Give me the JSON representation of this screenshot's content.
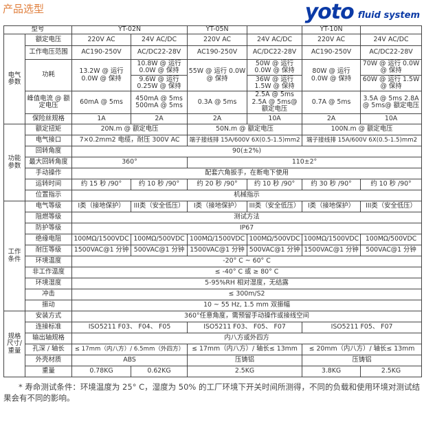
{
  "title": "产品选型",
  "header": {
    "label": "型号",
    "models": [
      "YT-02N",
      "YT-05N",
      "",
      "YT-10N",
      ""
    ]
  },
  "electrical": {
    "group": "电气参数",
    "rated_voltage": {
      "label": "额定电压",
      "values": [
        "220V AC",
        "24V AC/DC",
        "220V AC",
        "24V AC/DC",
        "220V AC",
        "24V AC/DC"
      ]
    },
    "voltage_range": {
      "label": "工作电压范围",
      "values": [
        "AC190-250V",
        "AC/DC22-28V",
        "AC190-250V",
        "AC/DC22-28V",
        "AC190-250V",
        "AC/DC22-28V"
      ]
    },
    "power": {
      "label": "功耗",
      "c1": "13.2W @ 运行 0.0W @ 保持",
      "c2a": "10.8W @ 运行 0.0W @ 保持",
      "c2b": "9.6W @ 运行 0.25W @ 保持",
      "c3": "55W @ 运行 0.0W @ 保持",
      "c4a": "50W @ 运行 0.0W @ 保持",
      "c4b": "36W @ 运行 1.5W @ 保持",
      "c5": "80W @ 运行 0.0W @ 保持",
      "c6a": "70W @ 运行 0.0W @ 保持",
      "c6b": "60W @ 运行 1.5W @ 保持"
    },
    "peak": {
      "label": "峰值电流 @ 额定电压",
      "values": [
        "60mA @ 5ms",
        "450mA @ 5ms 500mA @ 5ms",
        "0.3A @ 5ms",
        "2.5A @ 5ms 2.5A @ 5ms@ 额定电压",
        "0.7A @ 5ms",
        "3.5A @ 5ms 2.8A @ 5ms@ 额定电压"
      ]
    },
    "fuse": {
      "label": "保险丝规格",
      "values": [
        "1A",
        "2A",
        "2A",
        "10A",
        "2A",
        "10A"
      ]
    }
  },
  "function": {
    "group": "功能参数",
    "torque": {
      "label": "额定扭矩",
      "values": [
        "20N.m @ 额定电压",
        "50N.m @ 额定电压",
        "100N.m @ 额定电压"
      ]
    },
    "connector": {
      "label": "电气接口",
      "values": [
        "7×0.2mm2 电缆，耐压 300V AC",
        "端子接线排 15A/600V 6X(0.5-1.5)mm2",
        "端子接线排 15A/600V 6X(0.5-1.5)mm2"
      ]
    },
    "angle": {
      "label": "回转角度",
      "value": "90(±2%)"
    },
    "max_angle": {
      "label": "最大回转角度",
      "values": [
        "360°",
        "110±2°"
      ]
    },
    "manual": {
      "label": "手动操作",
      "value": "配套六角扳手，在断电下使用"
    },
    "run_time": {
      "label": "运转时间",
      "values": [
        "约 15 秒 /90°",
        "约 10 秒 /90°",
        "约 20 秒 /90°",
        "约 10 秒 /90°",
        "约 30 秒 /90°",
        "约 10 秒 /90°"
      ]
    },
    "position": {
      "label": "位置指示",
      "value": "机械指示"
    }
  },
  "working": {
    "group": "工作条件",
    "elec_class": {
      "label": "电气等级",
      "values": [
        "I类（接地保护）",
        "III类（安全低压）",
        "I类（接地保护）",
        "III类（安全低压）",
        "I类（接地保护）",
        "III类（安全低压）"
      ]
    },
    "flame": {
      "label": "阻燃等级",
      "value": "测试方法"
    },
    "ip": {
      "label": "防护等级",
      "value": "IP67"
    },
    "insulation": {
      "label": "绝缘电阻",
      "values": [
        "100MΩ/1500VDC",
        "100MΩ/500VDC",
        "100MΩ/1500VDC",
        "100MΩ/500VDC",
        "100MΩ/1500VDC",
        "100MΩ/500VDC"
      ]
    },
    "withstand": {
      "label": "耐压等级",
      "values": [
        "1500VAC@1 分钟",
        "500VAC@1 分钟",
        "1500VAC@1 分钟",
        "500VAC@1 分钟",
        "1500VAC@1 分钟",
        "500VAC@1 分钟"
      ]
    },
    "temp": {
      "label": "环境温度",
      "value": "-20° C ~ 60° C"
    },
    "storage_temp": {
      "label": "非工作温度",
      "value": "≤ -40° C 或 ≥ 80° C"
    },
    "humidity": {
      "label": "环境湿度",
      "value": "5-95%RH 相对湿度，无结露"
    },
    "shock": {
      "label": "冲击",
      "value": "≤ 300m/S2"
    },
    "vibration": {
      "label": "振动",
      "value": "10 ~ 55 Hz, 1.5 mm 双振幅"
    }
  },
  "spec": {
    "group": "规格尺寸/重量",
    "mounting": {
      "label": "安装方式",
      "value": "360°任意角度，需预留手动操作或接线空间"
    },
    "standard": {
      "label": "连接标准",
      "values": [
        "ISO5211 F03、 F04、 F05",
        "ISO5211 F03、 F05、 F07",
        "ISO5211  F05、 F07"
      ]
    },
    "shaft": {
      "label": "输出轴规格",
      "value": "内八方或外四方"
    },
    "depth": {
      "label": "孔深 / 轴长",
      "values": [
        "≤ 17mm（内八方）/ 6.5mm（外四方）",
        "≤ 17mm（内八方）/ 轴长≤ 13mm",
        "≤ 20mm（内八方）/ 轴长≤ 13mm"
      ]
    },
    "housing": {
      "label": "外壳材质",
      "values": [
        "ABS",
        "压铸铝",
        "压铸铝"
      ]
    },
    "weight": {
      "label": "重量",
      "values": [
        "0.78KG",
        "0.62KG",
        "2.5KG",
        "3.8KG",
        "2.5KG"
      ]
    }
  },
  "logo": {
    "brand": "yoto",
    "tagline": "fluid system",
    "color": "#0b3aa6"
  },
  "footnote": "* 寿命测试条件：环境温度为 25°  C，湿度为 50% 的工厂环境下开关时间所测得，不同的负载和使用环境对测试结果会有不同的影响。",
  "colors": {
    "title": "#e0803f",
    "border": "#444444"
  }
}
